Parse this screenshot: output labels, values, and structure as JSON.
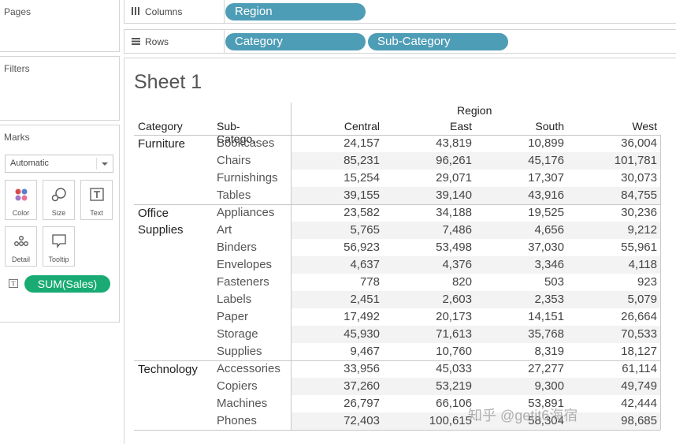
{
  "left": {
    "pages_title": "Pages",
    "filters_title": "Filters",
    "marks_title": "Marks",
    "mark_type": "Automatic",
    "mark_buttons": [
      {
        "label": "Color",
        "icon": "color-dots-icon"
      },
      {
        "label": "Size",
        "icon": "size-bubbles-icon"
      },
      {
        "label": "Text",
        "icon": "text-icon"
      },
      {
        "label": "Detail",
        "icon": "detail-dots-icon"
      },
      {
        "label": "Tooltip",
        "icon": "tooltip-icon"
      }
    ],
    "sum_pill": "SUM(Sales)"
  },
  "shelves": {
    "columns_label": "Columns",
    "rows_label": "Rows",
    "columns_pills": [
      "Region"
    ],
    "rows_pills": [
      "Category",
      "Sub-Category"
    ]
  },
  "sheet": {
    "title": "Sheet 1",
    "table": {
      "region_header": "Region",
      "col_headers": {
        "category": "Category",
        "subcategory": "Sub-Catego..",
        "regions": [
          "Central",
          "East",
          "South",
          "West"
        ]
      },
      "groups": [
        {
          "category": [
            "Furniture"
          ],
          "rows": [
            {
              "sub": "Bookcases",
              "values": [
                "24,157",
                "43,819",
                "10,899",
                "36,004"
              ]
            },
            {
              "sub": "Chairs",
              "values": [
                "85,231",
                "96,261",
                "45,176",
                "101,781"
              ]
            },
            {
              "sub": "Furnishings",
              "values": [
                "15,254",
                "29,071",
                "17,307",
                "30,073"
              ]
            },
            {
              "sub": "Tables",
              "values": [
                "39,155",
                "39,140",
                "43,916",
                "84,755"
              ]
            }
          ]
        },
        {
          "category": [
            "Office",
            "Supplies"
          ],
          "rows": [
            {
              "sub": "Appliances",
              "values": [
                "23,582",
                "34,188",
                "19,525",
                "30,236"
              ]
            },
            {
              "sub": "Art",
              "values": [
                "5,765",
                "7,486",
                "4,656",
                "9,212"
              ]
            },
            {
              "sub": "Binders",
              "values": [
                "56,923",
                "53,498",
                "37,030",
                "55,961"
              ]
            },
            {
              "sub": "Envelopes",
              "values": [
                "4,637",
                "4,376",
                "3,346",
                "4,118"
              ]
            },
            {
              "sub": "Fasteners",
              "values": [
                "778",
                "820",
                "503",
                "923"
              ]
            },
            {
              "sub": "Labels",
              "values": [
                "2,451",
                "2,603",
                "2,353",
                "5,079"
              ]
            },
            {
              "sub": "Paper",
              "values": [
                "17,492",
                "20,173",
                "14,151",
                "26,664"
              ]
            },
            {
              "sub": "Storage",
              "values": [
                "45,930",
                "71,613",
                "35,768",
                "70,533"
              ]
            },
            {
              "sub": "Supplies",
              "values": [
                "9,467",
                "10,760",
                "8,319",
                "18,127"
              ]
            }
          ]
        },
        {
          "category": [
            "Technology"
          ],
          "rows": [
            {
              "sub": "Accessories",
              "values": [
                "33,956",
                "45,033",
                "27,277",
                "61,114"
              ]
            },
            {
              "sub": "Copiers",
              "values": [
                "37,260",
                "53,219",
                "9,300",
                "49,749"
              ]
            },
            {
              "sub": "Machines",
              "values": [
                "26,797",
                "66,106",
                "53,891",
                "42,444"
              ]
            },
            {
              "sub": "Phones",
              "values": [
                "72,403",
                "100,615",
                "58,304",
                "98,685"
              ]
            }
          ]
        }
      ]
    }
  },
  "watermark": "知乎 @getit6海宿"
}
